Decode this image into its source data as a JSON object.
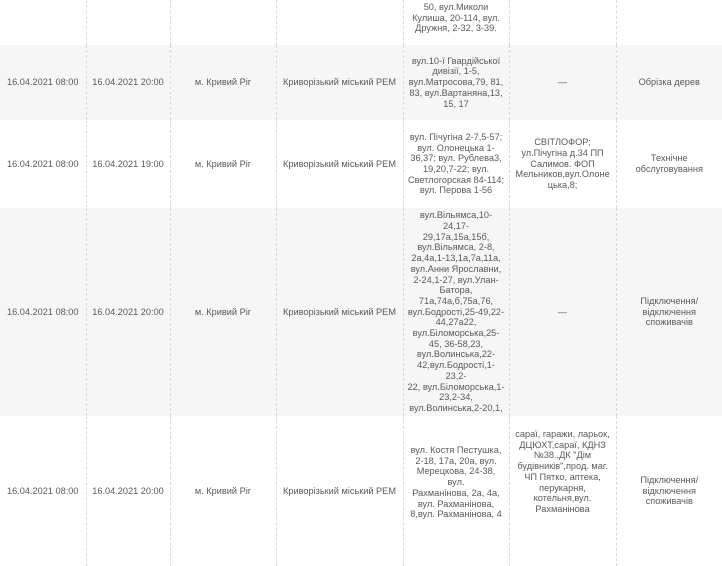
{
  "rows": [
    {
      "start": "",
      "end": "",
      "city": "",
      "rem": "",
      "streets": [
        "50, вул.Миколи",
        "Кулиша, 20-114, вул.",
        "Дружня, 2-32, 3-39."
      ],
      "objects": [],
      "reason": ""
    },
    {
      "start": "16.04.2021 08:00",
      "end": "16.04.2021 20:00",
      "city": "м. Кривий Ріг",
      "rem": "Криворізький міський РЕМ",
      "streets": [
        "вул.10-ї Гвардійської",
        "дивізії, 1-5,",
        "вул.Матросова,79, 81,",
        "83, вул.Вартаняна,13,",
        "15, 17"
      ],
      "objects": [
        "—"
      ],
      "reason": "Обрізка дерев"
    },
    {
      "start": "16.04.2021 08:00",
      "end": "16.04.2021 19:00",
      "city": "м. Кривий Ріг",
      "rem": "Криворізький міський РЕМ",
      "streets": [
        "вул. Пічугіна 2-7,5-57;",
        "вул. Олонецька 1-",
        "36,37; вул. Рублева3,",
        "19,20,7-22; вул.",
        "Светлогорская 84-114;",
        "вул. Перова 1-56"
      ],
      "objects": [
        "СВІТЛОФОР;",
        "ул.Пічугіна д.34 ПП",
        "Салимов. ФОП",
        "Мельников,вул.Олоне",
        "цька,8;"
      ],
      "reason": "Технічне обслуговування"
    },
    {
      "start": "16.04.2021 08:00",
      "end": "16.04.2021 20:00",
      "city": "м. Кривий Ріг",
      "rem": "Криворізький міський РЕМ",
      "streets": [
        "вул.Вільямса,10-24,17-",
        "29,17а,15а,15б,",
        "вул.Вільямса, 2-8,",
        "2а,4а,1-13,1а,7а,11а,",
        "вул.Анни Ярославни,",
        "2-24,1-27, вул.Улан-",
        "Батора,",
        "71а,74а,б,75а,76,",
        "вул.Бодрості,25-49,22-",
        "44,27а22,",
        "вул.Біломорська,25-",
        "45, 36-58,23,",
        "вул.Волинська,22-",
        "42,вул.Бодрості,1-23,2-",
        "22, вул.Біломорська,1-",
        "23,2-34,",
        "вул.Волинська,2-20,1,"
      ],
      "objects": [
        "—"
      ],
      "reason": "Підключення/ відключення споживачів"
    },
    {
      "start": "16.04.2021 08:00",
      "end": "16.04.2021 20:00",
      "city": "м. Кривий Ріг",
      "rem": "Криворізький міський РЕМ",
      "streets": [
        "вул. Костя Пестушка,",
        "2-18, 17а, 20а, вул.",
        "Мерецкова, 24-38, вул.",
        "Рахманінова, 2а, 4а,",
        "вул. Рахманінова,",
        "8,вул. Рахманінова, 4"
      ],
      "objects": [
        "сараї, гаражи, ларьок,",
        "ДЦЮХТ,сараї, КДНЗ",
        "№38.,ДК \"Дім",
        "будівників\",прод. маг.",
        "ЧП Пятко, аптека,",
        "перукарня,",
        "котельня,вул.",
        "Рахманінова"
      ],
      "reason": "Підключення/ відключення споживачів"
    }
  ]
}
